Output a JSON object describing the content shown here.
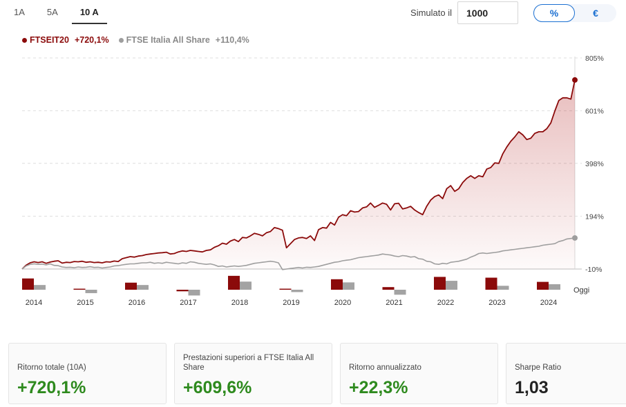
{
  "tabs": [
    "1A",
    "5A",
    "10 A"
  ],
  "simulator": {
    "label": "Simulato il",
    "value": "1000",
    "options": [
      "%",
      "€"
    ]
  },
  "legend": [
    {
      "name": "FTSEIT20",
      "value": "+720,1%",
      "color": "#8b0a0a"
    },
    {
      "name": "FTSE Italia All Share",
      "value": "+110,4%",
      "color": "#9e9e9e"
    }
  ],
  "cards": [
    {
      "label": "Ritorno totale (10A)",
      "value": "+720,1%",
      "tone": "green"
    },
    {
      "label": "Prestazioni superiori a FTSE Italia All Share",
      "value": "+609,6%",
      "tone": "green"
    },
    {
      "label": "Ritorno annualizzato",
      "value": "+22,3%",
      "tone": "green"
    },
    {
      "label": "Sharpe Ratio",
      "value": "1,03",
      "tone": "dark"
    }
  ],
  "chart_data": {
    "type": "line",
    "ylim": [
      -10,
      805
    ],
    "yticks": [
      805,
      601,
      398,
      194,
      -10
    ],
    "ytick_labels": [
      "805%",
      "601%",
      "398%",
      "194%",
      "-10%"
    ],
    "grid": true,
    "years": [
      "2014",
      "2015",
      "2016",
      "2017",
      "2018",
      "2019",
      "2020",
      "2021",
      "2022",
      "2023",
      "2024"
    ],
    "today_label": "Oggi",
    "series": [
      {
        "name": "FTSEIT20",
        "color": "#8b0a0a",
        "values": [
          -10,
          5,
          14,
          18,
          15,
          18,
          12,
          17,
          20,
          22,
          13,
          16,
          15,
          19,
          18,
          20,
          16,
          18,
          15,
          16,
          14,
          18,
          17,
          21,
          19,
          30,
          34,
          38,
          36,
          40,
          42,
          46,
          48,
          50,
          52,
          53,
          55,
          48,
          50,
          56,
          60,
          58,
          62,
          60,
          58,
          56,
          62,
          64,
          74,
          80,
          90,
          86,
          98,
          104,
          96,
          112,
          110,
          118,
          128,
          124,
          118,
          130,
          135,
          150,
          146,
          140,
          72,
          88,
          104,
          110,
          112,
          108,
          118,
          100,
          142,
          150,
          148,
          170,
          160,
          190,
          200,
          196,
          215,
          210,
          212,
          226,
          230,
          245,
          228,
          236,
          245,
          240,
          218,
          242,
          244,
          222,
          226,
          232,
          218,
          208,
          200,
          232,
          256,
          270,
          276,
          262,
          300,
          312,
          290,
          300,
          324,
          340,
          350,
          340,
          350,
          346,
          376,
          382,
          400,
          398,
          435,
          461,
          483,
          500,
          520,
          508,
          490,
          495,
          514,
          520,
          520,
          532,
          554,
          600,
          641,
          651,
          651,
          646,
          720
        ]
      },
      {
        "name": "FTSE Italia All Share",
        "color": "#9e9e9e",
        "values": [
          -10,
          2,
          8,
          10,
          8,
          9,
          6,
          10,
          4,
          3,
          -2,
          -4,
          -3,
          -5,
          -2,
          -4,
          -3,
          -1,
          -4,
          -3,
          -6,
          -4,
          -2,
          2,
          3,
          6,
          8,
          10,
          10,
          12,
          14,
          14,
          16,
          12,
          14,
          12,
          16,
          14,
          12,
          10,
          14,
          12,
          18,
          16,
          12,
          10,
          8,
          10,
          6,
          0,
          2,
          -2,
          0,
          2,
          0,
          2,
          4,
          8,
          12,
          14,
          16,
          18,
          20,
          18,
          14,
          -12,
          -10,
          -8,
          -6,
          -4,
          -6,
          -3,
          -4,
          -2,
          0,
          4,
          8,
          12,
          16,
          18,
          22,
          24,
          26,
          30,
          34,
          36,
          38,
          40,
          42,
          44,
          48,
          46,
          44,
          40,
          38,
          42,
          40,
          36,
          38,
          30,
          28,
          20,
          18,
          10,
          8,
          12,
          10,
          16,
          18,
          20,
          24,
          28,
          36,
          42,
          50,
          52,
          50,
          52,
          54,
          56,
          60,
          62,
          64,
          66,
          68,
          70,
          72,
          74,
          76,
          78,
          82,
          84,
          86,
          88,
          96,
          100,
          106,
          108,
          110
        ]
      }
    ],
    "annual_returns": [
      {
        "year": "2014",
        "ftseit20": 43,
        "ftse_italia": 18
      },
      {
        "year": "2015",
        "ftseit20": 2,
        "ftse_italia": -13
      },
      {
        "year": "2016",
        "ftseit20": 27,
        "ftse_italia": 18
      },
      {
        "year": "2017",
        "ftseit20": -6,
        "ftse_italia": -22
      },
      {
        "year": "2018",
        "ftseit20": 53,
        "ftse_italia": 31
      },
      {
        "year": "2019",
        "ftseit20": 4,
        "ftse_italia": -9
      },
      {
        "year": "2020",
        "ftseit20": 40,
        "ftse_italia": 28
      },
      {
        "year": "2021",
        "ftseit20": 10,
        "ftse_italia": -19
      },
      {
        "year": "2022",
        "ftseit20": 49,
        "ftse_italia": 34
      },
      {
        "year": "2023",
        "ftseit20": 46,
        "ftse_italia": 15
      },
      {
        "year": "2024",
        "ftseit20": 30,
        "ftse_italia": 21
      }
    ]
  }
}
